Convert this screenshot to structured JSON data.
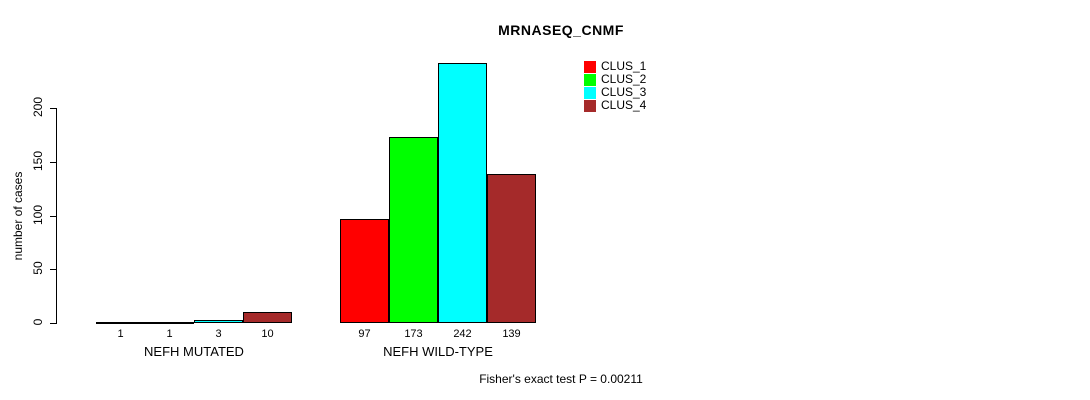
{
  "chart_data": {
    "type": "bar",
    "title": "MRNASEQ_CNMF",
    "ylabel": "number of cases",
    "yticks": [
      0,
      50,
      100,
      150,
      200
    ],
    "ylim": [
      0,
      242
    ],
    "grid": false,
    "legend_position": "top-right",
    "categories": [
      "NEFH MUTATED",
      "NEFH WILD-TYPE"
    ],
    "series": [
      {
        "name": "CLUS_1",
        "color": "#FF0000",
        "values": [
          1,
          97
        ]
      },
      {
        "name": "CLUS_2",
        "color": "#00FF00",
        "values": [
          1,
          173
        ]
      },
      {
        "name": "CLUS_3",
        "color": "#00FFFF",
        "values": [
          3,
          242
        ]
      },
      {
        "name": "CLUS_4",
        "color": "#A52A2A",
        "values": [
          10,
          139
        ]
      }
    ],
    "bar_value_labels": [
      [
        1,
        1,
        3,
        10
      ],
      [
        97,
        173,
        242,
        139
      ]
    ],
    "annotation": "Fisher's exact test P = 0.00211"
  }
}
